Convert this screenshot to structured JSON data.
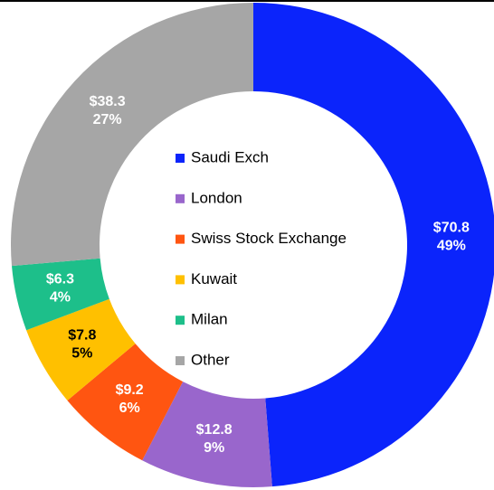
{
  "chart_data": {
    "type": "donut",
    "categories": [
      "Saudi Exch",
      "London",
      "Swiss Stock Exchange",
      "Kuwait",
      "Milan",
      "Other"
    ],
    "values": [
      70.8,
      12.8,
      9.2,
      7.8,
      6.3,
      38.3
    ],
    "value_labels": [
      "$70.8",
      "$12.8",
      "$9.2",
      "$7.8",
      "$6.3",
      "$38.3"
    ],
    "percent_labels": [
      "49%",
      "9%",
      "6%",
      "5%",
      "4%",
      "27%"
    ],
    "colors": [
      "#0b24fb",
      "#9966cc",
      "#ff5511",
      "#ffc000",
      "#1dbf8a",
      "#a6a6a6"
    ],
    "label_colors": [
      "#ffffff",
      "#ffffff",
      "#ffffff",
      "#000000",
      "#ffffff",
      "#ffffff"
    ]
  }
}
